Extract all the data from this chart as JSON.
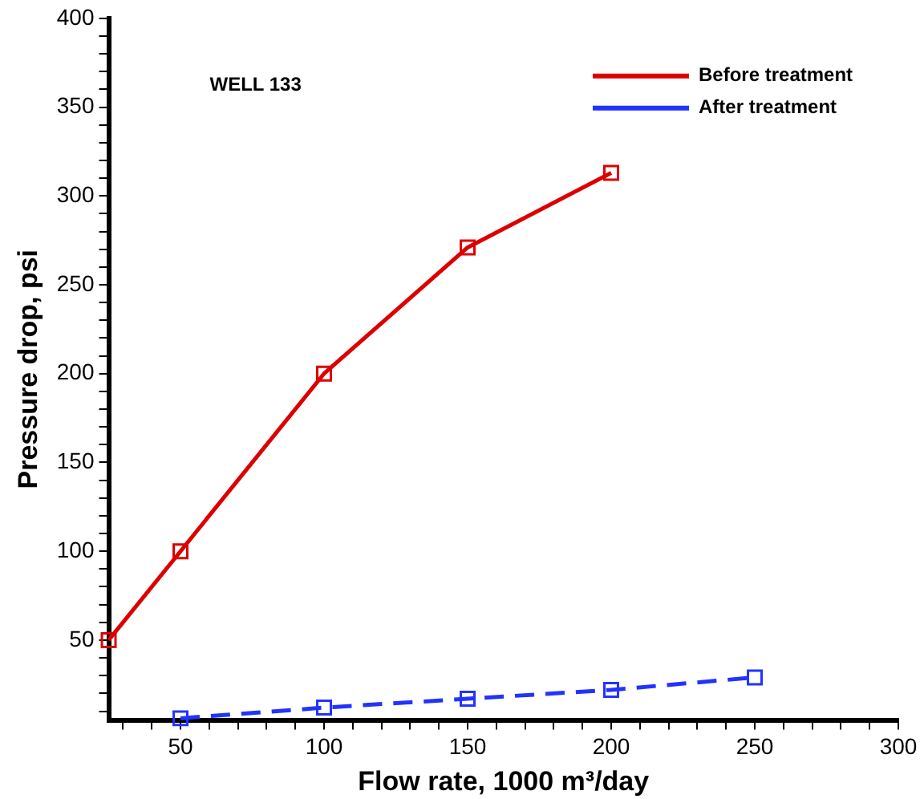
{
  "chart_data": {
    "type": "line",
    "xlabel": "Flow rate, 1000 m³/day",
    "ylabel": "Pressure drop, psi",
    "annotations": [
      "WELL 133"
    ],
    "xlim": [
      25,
      300
    ],
    "xticks": [
      {
        "value": 30,
        "label": null
      },
      {
        "value": 40,
        "label": null
      },
      50,
      {
        "value": 60,
        "label": null
      },
      {
        "value": 70,
        "label": null
      },
      {
        "value": 80,
        "label": null
      },
      {
        "value": 90,
        "label": null
      },
      100,
      {
        "value": 110,
        "label": null
      },
      {
        "value": 120,
        "label": null
      },
      {
        "value": 130,
        "label": null
      },
      {
        "value": 140,
        "label": null
      },
      150,
      {
        "value": 160,
        "label": null
      },
      {
        "value": 170,
        "label": null
      },
      {
        "value": 180,
        "label": null
      },
      {
        "value": 190,
        "label": null
      },
      200,
      {
        "value": 210,
        "label": null
      },
      {
        "value": 220,
        "label": null
      },
      {
        "value": 230,
        "label": null
      },
      {
        "value": 240,
        "label": null
      },
      250,
      {
        "value": 260,
        "label": null
      },
      {
        "value": 270,
        "label": null
      },
      {
        "value": 280,
        "label": null
      },
      {
        "value": 290,
        "label": null
      },
      300
    ],
    "ylim": [
      5,
      400
    ],
    "yticks": [
      {
        "value": 10,
        "label": null
      },
      {
        "value": 20,
        "label": null
      },
      {
        "value": 30,
        "label": null
      },
      {
        "value": 40,
        "label": null
      },
      50,
      {
        "value": 60,
        "label": null
      },
      {
        "value": 70,
        "label": null
      },
      {
        "value": 80,
        "label": null
      },
      {
        "value": 90,
        "label": null
      },
      100,
      {
        "value": 110,
        "label": null
      },
      {
        "value": 120,
        "label": null
      },
      {
        "value": 130,
        "label": null
      },
      {
        "value": 140,
        "label": null
      },
      150,
      {
        "value": 160,
        "label": null
      },
      {
        "value": 170,
        "label": null
      },
      {
        "value": 180,
        "label": null
      },
      {
        "value": 190,
        "label": null
      },
      200,
      {
        "value": 210,
        "label": null
      },
      {
        "value": 220,
        "label": null
      },
      {
        "value": 230,
        "label": null
      },
      {
        "value": 240,
        "label": null
      },
      250,
      {
        "value": 260,
        "label": null
      },
      {
        "value": 270,
        "label": null
      },
      {
        "value": 280,
        "label": null
      },
      {
        "value": 290,
        "label": null
      },
      300,
      {
        "value": 310,
        "label": null
      },
      {
        "value": 320,
        "label": null
      },
      {
        "value": 330,
        "label": null
      },
      {
        "value": 340,
        "label": null
      },
      350,
      {
        "value": 360,
        "label": null
      },
      {
        "value": 370,
        "label": null
      },
      {
        "value": 380,
        "label": null
      },
      {
        "value": 390,
        "label": null
      },
      400
    ],
    "grid": false,
    "legend": "top right",
    "marker": "square",
    "series": [
      {
        "name": "Before treatment",
        "color": "#dd0000",
        "line_style": "solid",
        "x": [
          25,
          50,
          100,
          150,
          200
        ],
        "values": [
          50,
          100,
          200,
          271,
          313
        ]
      },
      {
        "name": "After treatment",
        "color": "#2233ff",
        "line_style": "dashed",
        "x": [
          50,
          100,
          150,
          200,
          250
        ],
        "values": [
          6,
          12,
          17,
          22,
          29
        ]
      }
    ]
  }
}
